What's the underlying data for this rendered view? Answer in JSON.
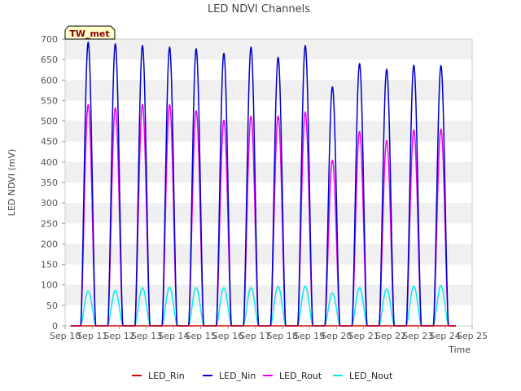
{
  "chart_data": {
    "type": "line",
    "title": "LED NDVI Channels",
    "xlabel": "Time",
    "ylabel": "LED NDVI (mV)",
    "badge": "TW_met",
    "ylim": [
      0,
      700
    ],
    "yticks": [
      0,
      50,
      100,
      150,
      200,
      250,
      300,
      350,
      400,
      450,
      500,
      550,
      600,
      650,
      700
    ],
    "xlim": [
      "Sep 10",
      "Sep 25"
    ],
    "xticks": [
      "Sep 10",
      "Sep 11",
      "Sep 12",
      "Sep 13",
      "Sep 14",
      "Sep 15",
      "Sep 16",
      "Sep 17",
      "Sep 18",
      "Sep 19",
      "Sep 20",
      "Sep 21",
      "Sep 22",
      "Sep 23",
      "Sep 24",
      "Sep 25"
    ],
    "grid": "horizontal bands",
    "legend_position": "bottom",
    "x_unit": "day of September",
    "daily_peak_time": [
      10.85,
      11.85,
      12.85,
      13.85,
      14.83,
      15.85,
      16.85,
      17.85,
      18.85,
      19.85,
      20.85,
      21.85,
      22.85,
      23.85
    ],
    "series": [
      {
        "name": "LED_Rin",
        "color": "#dd0000",
        "daily_peaks": [
          0,
          0,
          0,
          0,
          0,
          0,
          0,
          0,
          0,
          0,
          0,
          0,
          0,
          0
        ]
      },
      {
        "name": "LED_Nin",
        "color": "#0000cc",
        "daily_peaks": [
          692,
          688,
          684,
          680,
          676,
          665,
          680,
          655,
          684,
          583,
          640,
          626,
          636,
          635
        ]
      },
      {
        "name": "LED_Rout",
        "color": "#ee00ee",
        "daily_peaks": [
          540,
          532,
          540,
          540,
          525,
          502,
          512,
          512,
          522,
          404,
          474,
          452,
          478,
          480
        ]
      },
      {
        "name": "LED_Nout",
        "color": "#00eeee",
        "daily_peaks": [
          85,
          86,
          93,
          94,
          93,
          93,
          93,
          96,
          97,
          80,
          93,
          90,
          97,
          98
        ]
      }
    ]
  }
}
